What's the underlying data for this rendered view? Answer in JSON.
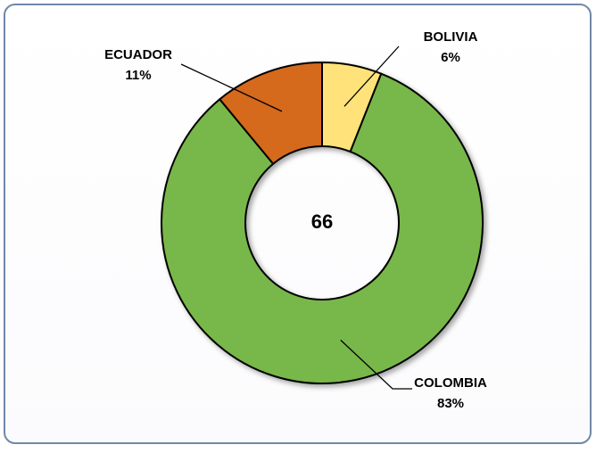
{
  "chart_data": {
    "type": "donut",
    "categories": [
      "BOLIVIA",
      "COLOMBIA",
      "ECUADOR"
    ],
    "values": [
      6,
      83,
      11
    ],
    "value_labels": [
      "6%",
      "83%",
      "11%"
    ],
    "colors": [
      "#FFE27A",
      "#78B74A",
      "#D5691F"
    ],
    "center_label": 66
  }
}
